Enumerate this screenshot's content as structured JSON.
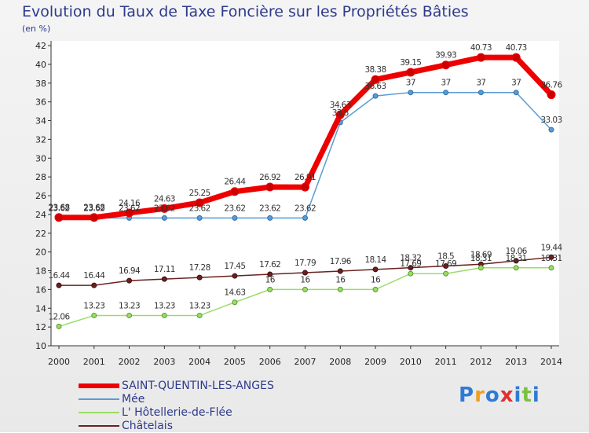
{
  "chart_data": {
    "type": "line",
    "title": "Evolution du Taux de Taxe Foncière sur les Propriétés Bâties",
    "subtitle": "(en %)",
    "x": [
      "2000",
      "2001",
      "2002",
      "2003",
      "2004",
      "2005",
      "2006",
      "2007",
      "2008",
      "2009",
      "2010",
      "2011",
      "2012",
      "2013",
      "2014"
    ],
    "ylim": [
      10,
      42
    ],
    "yticks": [
      "10",
      "12",
      "14",
      "16",
      "18",
      "20",
      "22",
      "24",
      "26",
      "28",
      "30",
      "32",
      "34",
      "36",
      "38",
      "40",
      "42"
    ],
    "grid": false,
    "legend_position": "bottom-left",
    "series": [
      {
        "name": "SAINT-QUENTIN-LES-ANGES",
        "color": "#ee0000",
        "values": [
          23.68,
          23.68,
          24.16,
          24.63,
          25.25,
          26.44,
          26.92,
          26.91,
          34.63,
          38.38,
          39.15,
          39.93,
          40.73,
          40.73,
          36.76
        ],
        "labels": [
          "23.68",
          "23.68",
          "24.16",
          "24.63",
          "25.25",
          "26.44",
          "26.92",
          "26.91",
          "34.63",
          "38.38",
          "39.15",
          "39.93",
          "40.73",
          "40.73",
          "36.76"
        ]
      },
      {
        "name": "Mée",
        "color": "#5b9bd5",
        "values": [
          23.62,
          23.62,
          23.62,
          23.62,
          23.62,
          23.62,
          23.62,
          23.62,
          33.8,
          36.63,
          37,
          37,
          37,
          37,
          33.03
        ],
        "labels": [
          "23.62",
          "23.62",
          "23.62",
          "23.62",
          "23.62",
          "23.62",
          "23.62",
          "23.62",
          "33.8",
          "36.63",
          "37",
          "37",
          "37",
          "37",
          "33.03"
        ]
      },
      {
        "name": "L' Hôtellerie-de-Flée",
        "color": "#99dd66",
        "values": [
          12.06,
          13.23,
          13.23,
          13.23,
          13.23,
          14.63,
          16,
          16,
          16,
          16,
          17.69,
          17.69,
          18.31,
          18.31,
          18.31
        ],
        "labels": [
          "12.06",
          "13.23",
          "13.23",
          "13.23",
          "13.23",
          "14.63",
          "16",
          "16",
          "16",
          "16",
          "17.69",
          "17.69",
          "18.31",
          "18.31",
          "18.31"
        ]
      },
      {
        "name": "Châtelais",
        "color": "#6b2020",
        "values": [
          16.44,
          16.44,
          16.94,
          17.11,
          17.28,
          17.45,
          17.62,
          17.79,
          17.96,
          18.14,
          18.32,
          18.5,
          18.69,
          19.06,
          19.44
        ],
        "labels": [
          "16.44",
          "16.44",
          "16.94",
          "17.11",
          "17.28",
          "17.45",
          "17.62",
          "17.79",
          "17.96",
          "18.14",
          "18.32",
          "18.5",
          "18.69",
          "19.06",
          "19.44"
        ]
      }
    ]
  },
  "branding": {
    "logo_letters": [
      "P",
      "r",
      "o",
      "x",
      "i",
      "t",
      "i"
    ],
    "logo_colors": [
      "#2e7bd6",
      "#f0a020",
      "#2e7bd6",
      "#e03030",
      "#2e7bd6",
      "#7ac143",
      "#2e7bd6"
    ]
  }
}
